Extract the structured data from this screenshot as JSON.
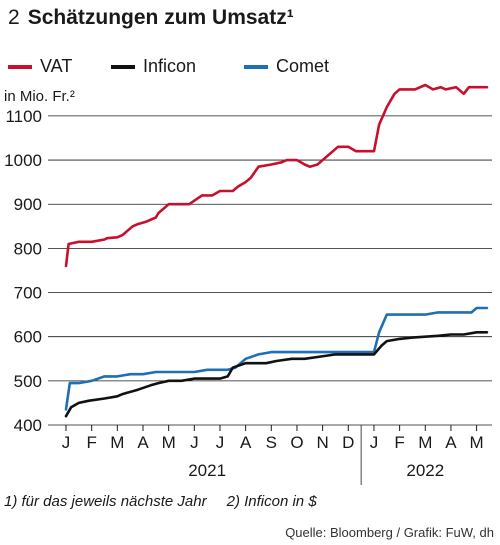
{
  "header": {
    "number": "2",
    "title": "Schätzungen zum Umsatz¹"
  },
  "legend": [
    {
      "label": "VAT",
      "color": "#c8102e"
    },
    {
      "label": "Inficon",
      "color": "#111111"
    },
    {
      "label": "Comet",
      "color": "#1f6fb2"
    }
  ],
  "unit_label": "in Mio. Fr.²",
  "footnotes": [
    "1) für das jeweils nächste Jahr",
    "2) Inficon in $"
  ],
  "source": "Quelle: Bloomberg / Grafik: FuW, dh",
  "chart_data": {
    "type": "line",
    "title": "Schätzungen zum Umsatz¹",
    "ylabel": "in Mio. Fr.²",
    "ylim": [
      400,
      1170
    ],
    "yticks": [
      400,
      500,
      600,
      700,
      800,
      900,
      1000,
      1100
    ],
    "grid": true,
    "legend_position": "top",
    "x_tick_labels": [
      "J",
      "F",
      "M",
      "A",
      "M",
      "J",
      "J",
      "A",
      "S",
      "O",
      "N",
      "D",
      "J",
      "F",
      "M",
      "A",
      "M"
    ],
    "year_labels": [
      "2021",
      "2022"
    ],
    "xlim": [
      0,
      16.6
    ],
    "series": [
      {
        "name": "VAT",
        "color": "#c8102e",
        "x": [
          0,
          0.1,
          0.5,
          0.6,
          1.0,
          1.5,
          1.6,
          2.0,
          2.2,
          2.6,
          2.8,
          3.1,
          3.5,
          3.6,
          4.0,
          4.5,
          4.8,
          5.3,
          5.7,
          6.0,
          6.5,
          6.7,
          7.0,
          7.2,
          7.5,
          8.0,
          8.4,
          8.6,
          9.0,
          9.3,
          9.5,
          9.8,
          10.6,
          11.0,
          11.3,
          11.8,
          12.0,
          12.2,
          12.5,
          12.8,
          13.0,
          13.6,
          14.0,
          14.3,
          14.6,
          14.8,
          15.2,
          15.5,
          15.7,
          16.0,
          16.4
        ],
        "y": [
          760,
          810,
          815,
          815,
          815,
          820,
          823,
          825,
          830,
          850,
          855,
          860,
          870,
          880,
          900,
          900,
          900,
          920,
          920,
          930,
          930,
          940,
          950,
          960,
          985,
          990,
          995,
          1000,
          1000,
          990,
          985,
          990,
          1030,
          1030,
          1020,
          1020,
          1020,
          1080,
          1120,
          1150,
          1160,
          1160,
          1170,
          1160,
          1165,
          1160,
          1165,
          1150,
          1165,
          1165,
          1165
        ]
      },
      {
        "name": "Inficon",
        "color": "#111111",
        "x": [
          0,
          0.2,
          0.5,
          0.9,
          1.5,
          2.0,
          2.2,
          2.8,
          3.3,
          3.6,
          4.0,
          4.5,
          5.0,
          5.5,
          6.0,
          6.3,
          6.5,
          7.0,
          7.8,
          8.2,
          8.8,
          9.3,
          9.9,
          10.5,
          11.0,
          11.3,
          11.8,
          12.0,
          12.3,
          12.5,
          13.0,
          13.5,
          14.0,
          14.5,
          15.0,
          15.5,
          16.0,
          16.4
        ],
        "y": [
          420,
          440,
          450,
          455,
          460,
          465,
          470,
          480,
          490,
          495,
          500,
          500,
          505,
          505,
          505,
          510,
          530,
          540,
          540,
          545,
          550,
          550,
          555,
          560,
          560,
          560,
          560,
          560,
          580,
          590,
          595,
          598,
          600,
          602,
          605,
          605,
          610,
          610
        ]
      },
      {
        "name": "Comet",
        "color": "#1f6fb2",
        "x": [
          0,
          0.15,
          0.5,
          1.0,
          1.5,
          2.0,
          2.5,
          3.0,
          3.5,
          4.0,
          4.5,
          5.0,
          5.5,
          6.0,
          6.3,
          6.6,
          7.0,
          7.5,
          8.0,
          8.5,
          9.0,
          9.3,
          9.9,
          10.5,
          11.0,
          11.5,
          11.8,
          12.0,
          12.2,
          12.5,
          13.0,
          13.5,
          14.0,
          14.5,
          15.0,
          15.5,
          15.8,
          16.0,
          16.4
        ],
        "y": [
          435,
          495,
          495,
          500,
          510,
          510,
          515,
          515,
          520,
          520,
          520,
          520,
          525,
          525,
          525,
          530,
          550,
          560,
          565,
          565,
          565,
          565,
          565,
          565,
          565,
          565,
          565,
          565,
          610,
          650,
          650,
          650,
          650,
          655,
          655,
          655,
          655,
          665,
          665
        ]
      }
    ]
  }
}
